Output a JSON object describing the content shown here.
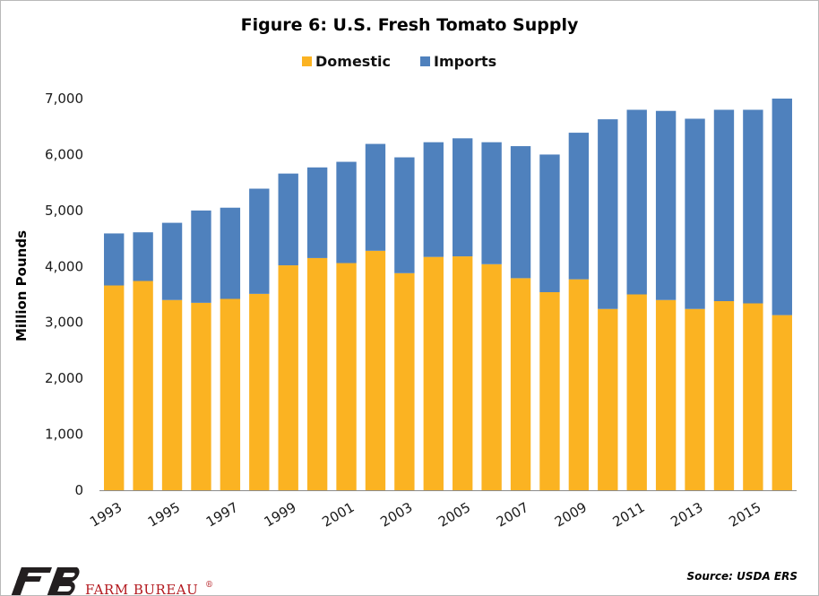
{
  "chart_data": {
    "type": "bar",
    "stacked": true,
    "title": "Figure 6: U.S. Fresh Tomato Supply",
    "ylabel": "Million Pounds",
    "xlabel": "",
    "ylim": [
      0,
      7000
    ],
    "yticks": [
      0,
      1000,
      2000,
      3000,
      4000,
      5000,
      6000,
      7000
    ],
    "ytick_labels": [
      "0",
      "1,000",
      "2,000",
      "3,000",
      "4,000",
      "5,000",
      "6,000",
      "7,000"
    ],
    "grid": false,
    "legend": "top-center",
    "categories": [
      "1993",
      "1994",
      "1995",
      "1996",
      "1997",
      "1998",
      "1999",
      "2000",
      "2001",
      "2002",
      "2003",
      "2004",
      "2005",
      "2006",
      "2007",
      "2008",
      "2009",
      "2010",
      "2011",
      "2012",
      "2013",
      "2014",
      "2015",
      "2016"
    ],
    "xtick_labels": [
      "1993",
      "1995",
      "1997",
      "1999",
      "2001",
      "2003",
      "2005",
      "2007",
      "2009",
      "2011",
      "2013",
      "2015"
    ],
    "series": [
      {
        "name": "Domestic",
        "color": "#fbb322",
        "values": [
          3660,
          3740,
          3400,
          3350,
          3420,
          3510,
          4020,
          4150,
          4060,
          4280,
          3880,
          4170,
          4180,
          4040,
          3790,
          3540,
          3770,
          3240,
          3500,
          3400,
          3240,
          3380,
          3340,
          3130
        ]
      },
      {
        "name": "Imports",
        "color": "#4f81bd",
        "values": [
          930,
          870,
          1380,
          1650,
          1630,
          1880,
          1640,
          1620,
          1810,
          1910,
          2070,
          2050,
          2110,
          2180,
          2360,
          2460,
          2620,
          3390,
          3300,
          3380,
          3400,
          3420,
          3460,
          3870
        ]
      }
    ]
  },
  "source": "Source: USDA ERS",
  "brand": {
    "logo_name": "farm-bureau-logo",
    "text": "FARM BUREAU",
    "mark": "®",
    "color": "#b3191f"
  }
}
